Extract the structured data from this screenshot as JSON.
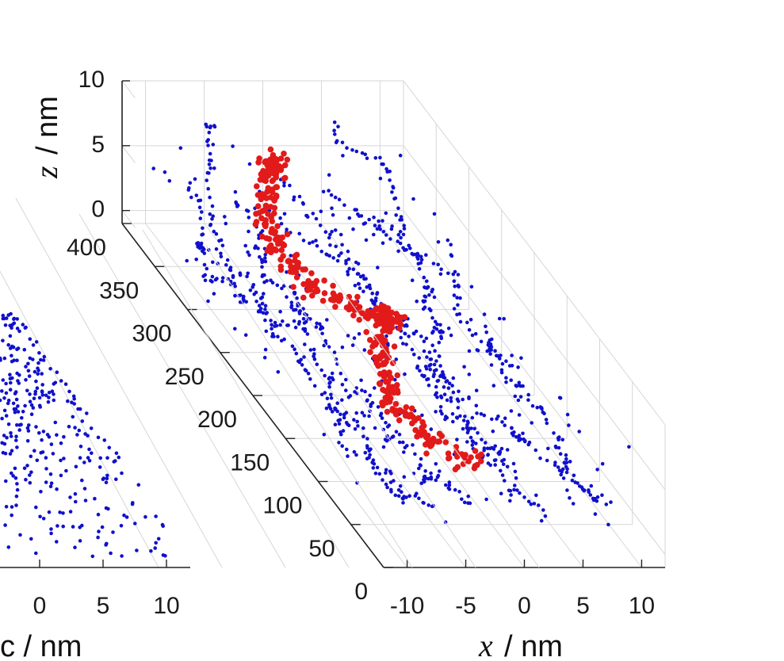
{
  "chart_data": [
    {
      "type": "scatter",
      "title": "",
      "axis_labels": {
        "x_var": "x",
        "z_var": "z",
        "unit": "/ nm"
      },
      "xlabel": "x / nm",
      "ylabel": "",
      "zlabel": "z / nm",
      "x_ticks": [
        "-10",
        "-5",
        "0",
        "5",
        "10"
      ],
      "y_ticks": [
        "0",
        "50",
        "100",
        "150",
        "200",
        "250",
        "300",
        "350",
        "400"
      ],
      "z_ticks": [
        "0",
        "5",
        "10"
      ],
      "xlim": [
        -12,
        12
      ],
      "ylim": [
        0,
        400
      ],
      "zlim": [
        -1,
        10
      ],
      "grid": true,
      "series": [
        {
          "color": "#1010cc",
          "marker_size": "small",
          "description_count": 1300
        },
        {
          "color": "#e21a1a",
          "marker_size": "large",
          "description_count": 420
        }
      ]
    },
    {
      "type": "scatter",
      "title": "",
      "xlabel": "x / nm",
      "x_ticks": [
        "0",
        "5",
        "10"
      ],
      "grid": true,
      "series": [
        {
          "color": "#1010cc",
          "marker_size": "small"
        }
      ]
    }
  ],
  "colors": {
    "blue": "#1010cc",
    "red": "#e21a1a",
    "grid": "#d6d6d6",
    "axis": "#222222"
  }
}
